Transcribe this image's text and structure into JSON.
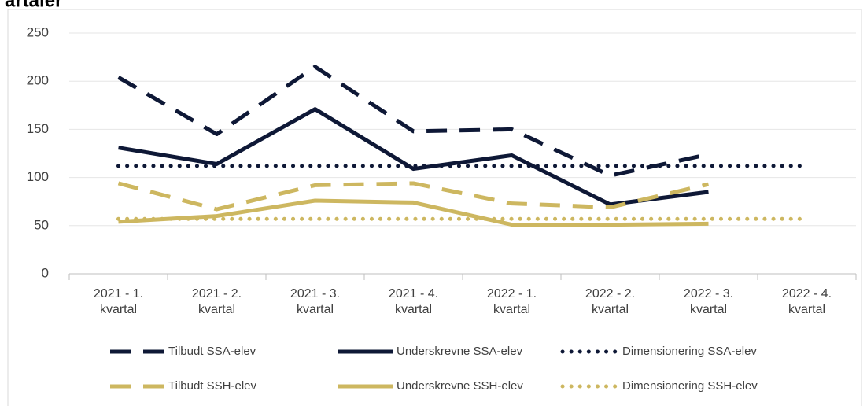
{
  "chart_data": {
    "type": "line",
    "title": "artaler",
    "categories": [
      "2021 - 1. kvartal",
      "2021 - 2. kvartal",
      "2021 - 3. kvartal",
      "2021 - 4. kvartal",
      "2022 - 1. kvartal",
      "2022 - 2. kvartal",
      "2022 - 3. kvartal",
      "2022 - 4. kvartal"
    ],
    "ylim": [
      0,
      250
    ],
    "yticks": [
      0,
      50,
      100,
      150,
      200,
      250
    ],
    "grid": true,
    "series": [
      {
        "name": "Tilbudt SSA-elev",
        "color": "#0e1836",
        "dash": "dashed",
        "values": [
          204,
          145,
          215,
          148,
          150,
          102,
          124,
          null
        ]
      },
      {
        "name": "Underskrevne SSA-elev",
        "color": "#0e1836",
        "dash": "solid",
        "values": [
          131,
          114,
          171,
          109,
          123,
          72,
          85,
          null
        ]
      },
      {
        "name": "Dimensionering SSA-elev",
        "color": "#0e1836",
        "dash": "dotted",
        "values": [
          112,
          112,
          112,
          112,
          112,
          112,
          112,
          112
        ]
      },
      {
        "name": "Tilbudt SSH-elev",
        "color": "#cdb760",
        "dash": "dashed",
        "values": [
          94,
          67,
          92,
          94,
          73,
          69,
          93,
          null
        ]
      },
      {
        "name": "Underskrevne SSH-elev",
        "color": "#cdb760",
        "dash": "solid",
        "values": [
          54,
          60,
          76,
          74,
          51,
          51,
          52,
          null
        ]
      },
      {
        "name": "Dimensionering SSH-elev",
        "color": "#cdb760",
        "dash": "dotted",
        "values": [
          57,
          57,
          57,
          57,
          57,
          57,
          57,
          57
        ]
      }
    ]
  }
}
